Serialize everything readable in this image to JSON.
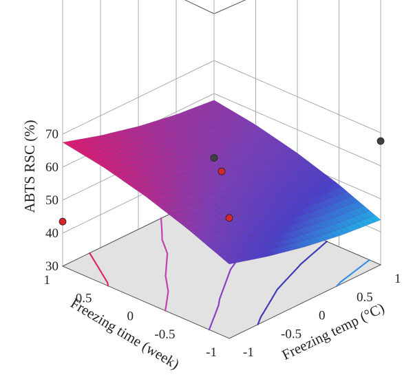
{
  "chart_data": {
    "type": "surface",
    "title": "",
    "zlabel": "ABTS RSC (%)",
    "xlabel": "Freezing temp (°C)",
    "ylabel": "Freezing time (week)",
    "x_ticks": [
      "-1",
      "-0.5",
      "0",
      "0.5",
      "1"
    ],
    "y_ticks": [
      "-1",
      "-0.5",
      "0",
      "0.5",
      "1"
    ],
    "z_ticks": [
      "30",
      "40",
      "50",
      "60",
      "70"
    ],
    "zlim": [
      30,
      70
    ],
    "grid": true,
    "contours": {
      "on_floor": true,
      "levels": [
        45,
        50,
        55,
        60,
        65
      ],
      "colors": [
        "#3a8fe0",
        "#3f3bb8",
        "#8a3fc8",
        "#c23fb0",
        "#d8286e"
      ]
    },
    "surface": {
      "grid": {
        "x": [
          -1,
          -0.5,
          0,
          0.5,
          1
        ],
        "y": [
          -1,
          -0.5,
          0,
          0.5,
          1
        ],
        "z": [
          [
            52.5,
            57.7,
            62.0,
            65.3,
            67.5
          ],
          [
            49.2,
            54.4,
            58.6,
            61.8,
            64.0
          ],
          [
            46.6,
            51.7,
            55.9,
            59.1,
            61.2
          ],
          [
            44.7,
            49.9,
            54.0,
            57.2,
            59.2
          ],
          [
            43.6,
            48.8,
            52.9,
            56.0,
            58.0
          ]
        ]
      },
      "colormap": [
        "#19c4ee",
        "#4a3fc8",
        "#7a3fb8",
        "#b52a8e",
        "#e8176a"
      ]
    },
    "points": [
      {
        "x": -1,
        "y": 1,
        "z": 43.5,
        "color": "#d8262b"
      },
      {
        "x": -1,
        "y": -1,
        "z": 66.5,
        "color": "#d8262b"
      },
      {
        "x": 0,
        "y": 0,
        "z": 58.5,
        "color": "#d8262b"
      },
      {
        "x": 1,
        "y": 1,
        "z": 40.5,
        "color": "#404040"
      },
      {
        "x": 1,
        "y": -1,
        "z": 67.5,
        "color": "#404040"
      }
    ],
    "colors": {
      "floor": "#e2e2e2",
      "box_line": "#555555",
      "grid_line": "#aaaaaa"
    }
  }
}
